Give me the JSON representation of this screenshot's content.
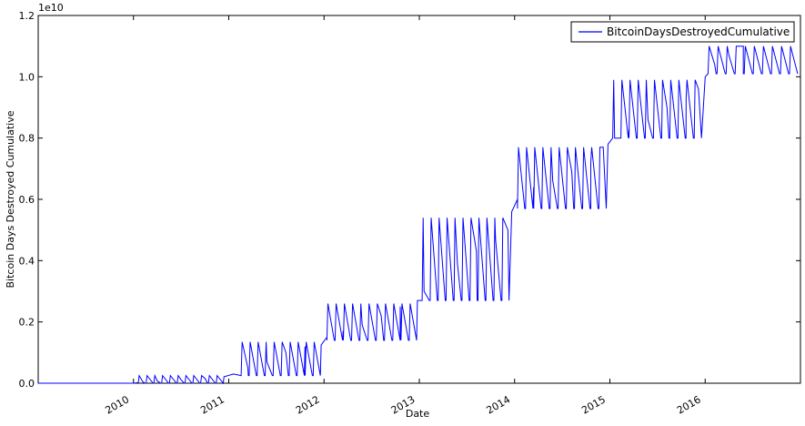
{
  "chart_data": {
    "type": "line",
    "title": "",
    "xlabel": "Date",
    "ylabel": "Bitcoin Days Destroyed Cumulative",
    "y_multiplier_label": "1e10",
    "legend": {
      "placement": "top-right",
      "entries": [
        "BitcoinDaysDestroyedCumulative"
      ]
    },
    "grid": false,
    "xlim": [
      2009.0,
      2017.0
    ],
    "ylim": [
      0.0,
      1.2
    ],
    "x_ticks": [
      2010,
      2011,
      2012,
      2013,
      2014,
      2015,
      2016
    ],
    "x_tick_labels": [
      "2010",
      "2011",
      "2012",
      "2013",
      "2014",
      "2015",
      "2016"
    ],
    "y_ticks": [
      0.0,
      0.2,
      0.4,
      0.6,
      0.8,
      1.0,
      1.2
    ],
    "y_tick_labels": [
      "0.0",
      "0.2",
      "0.4",
      "0.6",
      "0.8",
      "1.0",
      "1.2"
    ],
    "colors": {
      "series": "#0000ff",
      "axis": "#000000"
    },
    "series": [
      {
        "name": "BitcoinDaysDestroyedCumulative",
        "units": "1e10",
        "x": [
          2009.0,
          2010.0,
          2010.05,
          2010.1,
          2010.25,
          2010.5,
          2010.75,
          2010.95,
          2011.05,
          2011.2,
          2011.4,
          2011.6,
          2011.8,
          2011.97,
          2012.03,
          2012.2,
          2012.4,
          2012.6,
          2012.8,
          2012.98,
          2013.05,
          2013.2,
          2013.4,
          2013.6,
          2013.8,
          2013.93,
          2013.97,
          2014.03,
          2014.2,
          2014.4,
          2014.6,
          2014.8,
          2014.93,
          2014.98,
          2015.05,
          2015.2,
          2015.4,
          2015.6,
          2015.8,
          2015.93,
          2016.0,
          2016.1,
          2016.25,
          2016.4
        ],
        "y": [
          0.0,
          0.0,
          0.002,
          0.004,
          0.007,
          0.011,
          0.016,
          0.021,
          0.03,
          0.05,
          0.07,
          0.1,
          0.12,
          0.125,
          0.15,
          0.17,
          0.19,
          0.22,
          0.25,
          0.27,
          0.3,
          0.34,
          0.39,
          0.43,
          0.47,
          0.5,
          0.56,
          0.6,
          0.64,
          0.66,
          0.69,
          0.72,
          0.77,
          0.78,
          0.8,
          0.83,
          0.86,
          0.9,
          0.93,
          0.96,
          1.0,
          1.04,
          1.07,
          1.1
        ]
      }
    ],
    "sawtooth_overlays": [
      {
        "x_start": 2010.05,
        "x_end": 2010.95,
        "low": 0.0,
        "high": 0.025,
        "cycles": 11
      },
      {
        "x_start": 2011.13,
        "x_end": 2011.97,
        "low": 0.025,
        "high": 0.135,
        "cycles": 10
      },
      {
        "x_start": 2012.03,
        "x_end": 2012.98,
        "low": 0.14,
        "high": 0.26,
        "cycles": 11
      },
      {
        "x_start": 2013.03,
        "x_end": 2013.95,
        "low": 0.27,
        "high": 0.54,
        "cycles": 11
      },
      {
        "x_start": 2014.03,
        "x_end": 2014.97,
        "low": 0.57,
        "high": 0.77,
        "cycles": 11
      },
      {
        "x_start": 2015.03,
        "x_end": 2015.97,
        "low": 0.8,
        "high": 0.99,
        "cycles": 11
      },
      {
        "x_start": 2016.03,
        "x_end": 2016.98,
        "low": 1.01,
        "high": 1.1,
        "cycles": 10
      }
    ]
  }
}
